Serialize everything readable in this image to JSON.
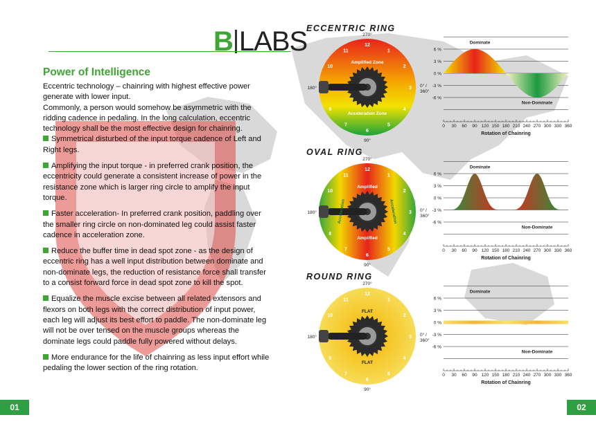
{
  "brand": {
    "b": "B",
    "labs": "LABS"
  },
  "heading": "Power of Intelligence",
  "intro": [
    "Eccentric technology – chainring with highest effective power generate with lower input.",
    "Commonly, a person would somehow be asymmetric with the ridding cadence in pedaling. In the long calculation, eccentric technology shall be the most effective design for chainring."
  ],
  "bullets": [
    "Symmetrical disturbed of the input torque cadence of Left and Right legs.",
    "Amplifying the input torque - in preferred crank position, the eccentricity could generate a consistent increase of power in the resistance zone which is larger ring circle to amplify the input torque.",
    "Faster acceleration- In preferred crank position, paddling over the smaller ring circle on non-dominated leg could assist faster cadence in acceleration zone.",
    "Reduce the buffer time in dead spot zone - as the design of eccentric ring has a well input distribution between dominate and non-dominate legs, the reduction of resistance force shall transfer to a consist forward force in dead spot zone to kill the spot.",
    "Equalize the muscle excise between all related extensors and flexors on both legs with the correct distribution of input power, each leg will adjust its best effort to paddle. The non-dominate leg will not be over tensed on the muscle groups whereas the dominate legs could paddle fully powered without delays.",
    "More endurance for the life of chainring as less input effort while pedaling the lower section of the ring rotation."
  ],
  "rings": [
    {
      "title": "ECCENTRIC RING",
      "top": "270°",
      "bottom": "90°",
      "left": "180°",
      "right1": "0° /",
      "right2": "360°",
      "zone_top": "Amplified Zone",
      "zone_bottom": "Acceleration Zone"
    },
    {
      "title": "OVAL RING",
      "top": "270°",
      "bottom": "90°",
      "left": "180°",
      "right1": "0° /",
      "right2": "360°",
      "zone_top": "Amplified",
      "zone_bottom": "Amplified",
      "zone_left": "Acceleration",
      "zone_right": "Acceleration"
    },
    {
      "title": "ROUND RING",
      "top": "270°",
      "bottom": "90°",
      "left": "180°",
      "right1": "0° /",
      "right2": "360°",
      "zone_top": "FLAT",
      "zone_bottom": "FLAT"
    }
  ],
  "clock_numbers": [
    "12",
    "1",
    "2",
    "3",
    "4",
    "5",
    "6",
    "7",
    "8",
    "9",
    "10",
    "11"
  ],
  "chart_data": [
    {
      "type": "area",
      "title": "",
      "xlabel": "Rotation of Chainring",
      "ylabel": "",
      "x_ticks": [
        "0",
        "30",
        "60",
        "90",
        "120",
        "150",
        "180",
        "210",
        "240",
        "270",
        "300",
        "330",
        "360"
      ],
      "y_ticks": [
        "6 %",
        "3 %",
        "0 %",
        "-3 %",
        "-6 %"
      ],
      "labels": {
        "upper": "Dominate",
        "lower": "Non-Dominate"
      },
      "series": [
        {
          "x": [
            0,
            30,
            60,
            90,
            120,
            150,
            180,
            210,
            240,
            270,
            300,
            330,
            360
          ],
          "y": [
            0,
            3,
            5.5,
            6,
            5.5,
            3,
            0,
            -3,
            -5.5,
            -6,
            -5.5,
            -3,
            0
          ]
        }
      ]
    },
    {
      "type": "area",
      "title": "",
      "xlabel": "Rotation of Chainring",
      "ylabel": "",
      "x_ticks": [
        "0",
        "30",
        "60",
        "90",
        "120",
        "150",
        "180",
        "210",
        "240",
        "270",
        "300",
        "330",
        "360"
      ],
      "y_ticks": [
        "6 %",
        "3 %",
        "0 %",
        "-3 %",
        "-6 %"
      ],
      "labels": {
        "upper": "Dominate",
        "lower": "Non-Dominate"
      },
      "series": [
        {
          "x": [
            0,
            30,
            60,
            90,
            120,
            150,
            180,
            210,
            240,
            270,
            300,
            330,
            360
          ],
          "y": [
            -3,
            -1,
            4,
            6,
            4,
            -1,
            -3,
            -1,
            4,
            6,
            4,
            -1,
            -3
          ]
        }
      ]
    },
    {
      "type": "area",
      "title": "",
      "xlabel": "Rotation of Chainring",
      "ylabel": "",
      "x_ticks": [
        "0",
        "30",
        "60",
        "90",
        "120",
        "150",
        "180",
        "210",
        "240",
        "270",
        "300",
        "330",
        "360"
      ],
      "y_ticks": [
        "6 %",
        "3 %",
        "0 %",
        "-3 %",
        "-6 %"
      ],
      "labels": {
        "upper": "Dominate",
        "lower": "Non-Dominate"
      },
      "series": [
        {
          "x": [
            0,
            30,
            60,
            90,
            120,
            150,
            180,
            210,
            240,
            270,
            300,
            330,
            360
          ],
          "y": [
            0,
            0,
            0,
            0,
            0,
            0,
            0,
            0,
            0,
            0,
            0,
            0,
            0
          ]
        }
      ]
    }
  ],
  "page_left": "01",
  "page_right": "02"
}
